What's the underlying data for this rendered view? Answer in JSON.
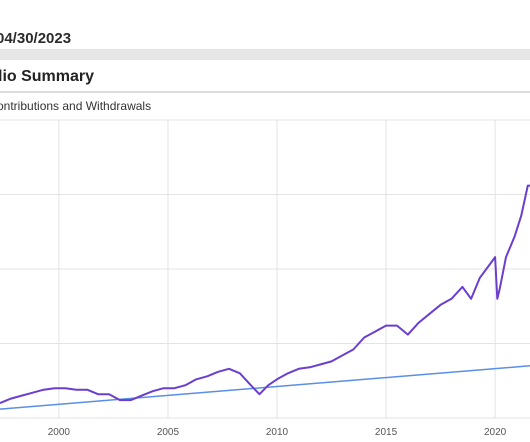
{
  "header": {
    "date": "04/30/2023"
  },
  "section": {
    "title": "lio Summary"
  },
  "chart_data": {
    "type": "line",
    "title": "",
    "subtitle": "ontributions and Withdrawals",
    "xlabel": "",
    "ylabel": "",
    "xlim": [
      1997.3,
      2021.6
    ],
    "ylim": [
      0,
      100
    ],
    "x_ticks": [
      2000,
      2005,
      2010,
      2015,
      2020
    ],
    "x_tick_labels": [
      "2000",
      "2005",
      "2010",
      "2015",
      "2020"
    ],
    "grid": true,
    "colors": {
      "portfolio": "#6a3fcf",
      "contributions": "#5b8ee6",
      "grid": "#e3e3e3"
    },
    "series": [
      {
        "key": "portfolio",
        "x": [
          1997.3,
          1997.8,
          1998.3,
          1998.8,
          1999.3,
          1999.8,
          2000.3,
          2000.8,
          2001.3,
          2001.8,
          2002.3,
          2002.8,
          2003.3,
          2003.8,
          2004.3,
          2004.8,
          2005.3,
          2005.8,
          2006.3,
          2006.8,
          2007.3,
          2007.8,
          2008.3,
          2008.8,
          2009.2,
          2009.6,
          2010.0,
          2010.5,
          2011.0,
          2011.5,
          2012.0,
          2012.5,
          2013.0,
          2013.5,
          2014.0,
          2014.5,
          2015.0,
          2015.5,
          2016.0,
          2016.5,
          2017.0,
          2017.5,
          2018.0,
          2018.5,
          2018.9,
          2019.3,
          2019.7,
          2020.0,
          2020.1,
          2020.2,
          2020.5,
          2020.9,
          2021.2,
          2021.5,
          2021.6
        ],
        "values": [
          5,
          6.5,
          7.5,
          8.5,
          9.5,
          10,
          10,
          9.5,
          9.5,
          8,
          8,
          6,
          6,
          7.5,
          9,
          10,
          10,
          11,
          13,
          14,
          15.5,
          16.5,
          15,
          11,
          8,
          11,
          13,
          15,
          16.5,
          17,
          18,
          19,
          21,
          23,
          27,
          29,
          31,
          31,
          28,
          32,
          35,
          38,
          40,
          44,
          40,
          47,
          51,
          54,
          40,
          43,
          54,
          61,
          68,
          78,
          78
        ]
      },
      {
        "key": "contributions",
        "x": [
          1997.3,
          2021.6
        ],
        "values": [
          3,
          17.5
        ]
      }
    ]
  }
}
